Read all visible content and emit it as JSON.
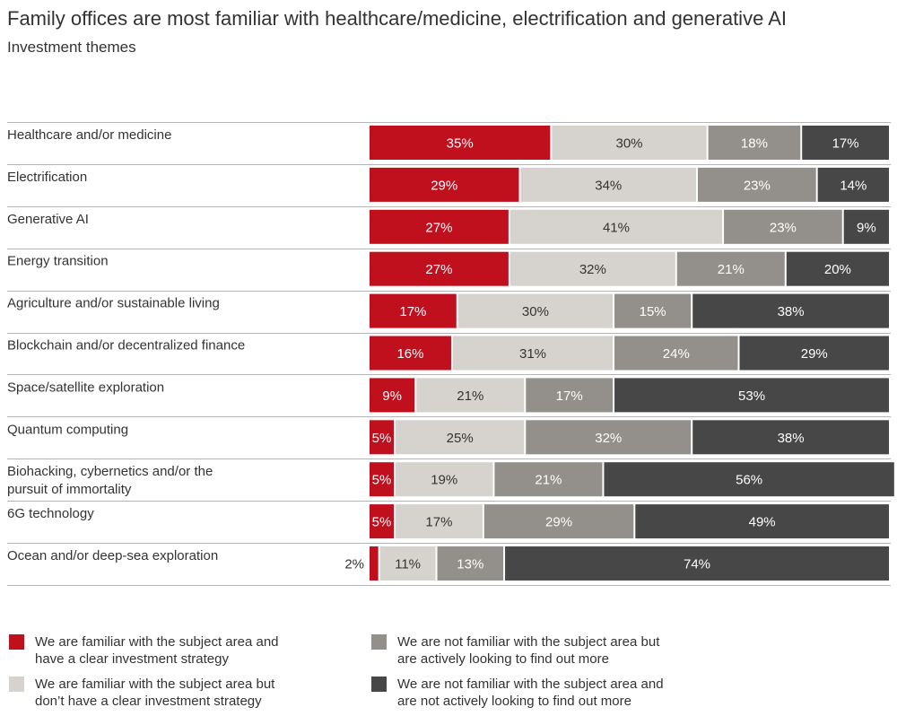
{
  "title": "Family offices are most familiar with healthcare/medicine, electrification and generative AI",
  "subtitle": "Investment themes",
  "colors": {
    "red": "#c0101e",
    "light": "#d6d3ce",
    "mid": "#938f8b",
    "dark": "#474747"
  },
  "chart_data": {
    "type": "bar",
    "orientation": "horizontal",
    "stacked": true,
    "categories": [
      "Healthcare and/or medicine",
      "Electrification",
      "Generative AI",
      "Energy transition",
      "Agriculture and/or sustainable living",
      "Blockchain and/or decentralized finance",
      "Space/satellite exploration",
      "Quantum computing",
      "Biohacking, cybernetics and/or the pursuit of immortality",
      "6G technology",
      "Ocean and/or deep-sea exploration"
    ],
    "category_lines": [
      [
        "Healthcare and/or medicine"
      ],
      [
        "Electrification"
      ],
      [
        "Generative AI"
      ],
      [
        "Energy transition"
      ],
      [
        "Agriculture and/or sustainable living"
      ],
      [
        "Blockchain and/or decentralized finance"
      ],
      [
        "Space/satellite exploration"
      ],
      [
        "Quantum computing"
      ],
      [
        "Biohacking, cybernetics and/or the",
        "pursuit of immortality"
      ],
      [
        "6G technology"
      ],
      [
        "Ocean and/or deep-sea exploration"
      ]
    ],
    "series": [
      {
        "name": "We are familiar with the subject area and have a clear investment strategy",
        "color": "#c0101e",
        "values": [
          35,
          29,
          27,
          27,
          17,
          16,
          9,
          5,
          5,
          5,
          2
        ]
      },
      {
        "name": "We are familiar with the subject area but don’t have a clear investment strategy",
        "color": "#d6d3ce",
        "values": [
          30,
          34,
          41,
          32,
          30,
          31,
          21,
          25,
          19,
          17,
          11
        ]
      },
      {
        "name": "We are not familiar with the subject area but are actively looking to find out more",
        "color": "#938f8b",
        "values": [
          18,
          23,
          23,
          21,
          15,
          24,
          17,
          32,
          21,
          29,
          13
        ]
      },
      {
        "name": "We are not familiar with the subject area and are not actively looking to find out more",
        "color": "#474747",
        "values": [
          17,
          14,
          9,
          20,
          38,
          29,
          53,
          38,
          56,
          49,
          74
        ]
      }
    ],
    "value_suffix": "%",
    "xlim": [
      0,
      100
    ]
  },
  "legend": [
    {
      "lines": [
        "We are familiar with the subject area and",
        "have a clear investment strategy"
      ],
      "color": "#c0101e"
    },
    {
      "lines": [
        "We are familiar with the subject area but",
        "don’t have a clear investment strategy"
      ],
      "color": "#d6d3ce"
    },
    {
      "lines": [
        "We are not familiar with the subject area but",
        "are actively looking to find out more"
      ],
      "color": "#938f8b"
    },
    {
      "lines": [
        "We are not familiar with the subject area and",
        "are not actively looking to find out more"
      ],
      "color": "#474747"
    }
  ]
}
